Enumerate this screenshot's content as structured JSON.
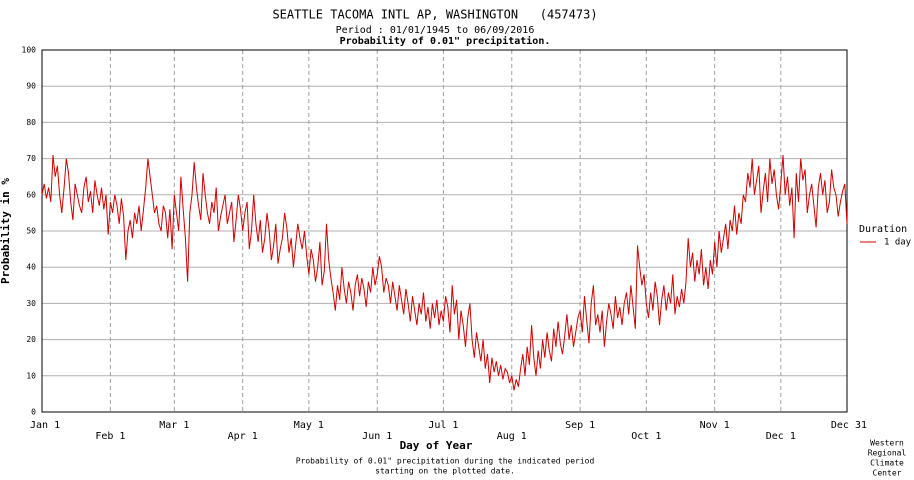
{
  "chart_data": {
    "type": "line",
    "title": "SEATTLE TACOMA INTL AP, WASHINGTON   (457473)",
    "subtitle": "Period : 01/01/1945 to 06/09/2016",
    "subtitle2": "Probability of 0.01\" precipitation.",
    "x_label": "Day of Year",
    "y_label": "Probability in %",
    "footnote": [
      "Probability of 0.01\" precipitation during the indicated period",
      "starting on the plotted date."
    ],
    "credit": [
      "Western",
      "Regional",
      "Climate",
      "Center"
    ],
    "legend_title": "Duration",
    "xlim": [
      0,
      365
    ],
    "xticks": [
      {
        "value": 0,
        "label": "Jan 1"
      },
      {
        "value": 31,
        "label": "Feb 1"
      },
      {
        "value": 60,
        "label": "Mar 1"
      },
      {
        "value": 91,
        "label": "Apr 1"
      },
      {
        "value": 121,
        "label": "May 1"
      },
      {
        "value": 152,
        "label": "Jun 1"
      },
      {
        "value": 182,
        "label": "Jul 1"
      },
      {
        "value": 213,
        "label": "Aug 1"
      },
      {
        "value": 244,
        "label": "Sep 1"
      },
      {
        "value": 274,
        "label": "Oct 1"
      },
      {
        "value": 305,
        "label": "Nov 1"
      },
      {
        "value": 335,
        "label": "Dec 1"
      },
      {
        "value": 365,
        "label": "Dec 31"
      }
    ],
    "ylim": [
      0,
      100
    ],
    "yticks": [
      0,
      10,
      20,
      30,
      40,
      50,
      60,
      70,
      80,
      90,
      100
    ],
    "grid": true,
    "series": [
      {
        "name": "1 day",
        "color": "#d00000",
        "values": [
          60,
          63,
          59,
          62,
          58,
          71,
          65,
          68,
          60,
          55,
          62,
          70,
          66,
          58,
          53,
          63,
          60,
          57,
          55,
          62,
          65,
          58,
          61,
          55,
          64,
          60,
          57,
          62,
          56,
          60,
          49,
          58,
          55,
          60,
          57,
          52,
          59,
          54,
          42,
          50,
          53,
          48,
          55,
          52,
          57,
          50,
          56,
          62,
          70,
          65,
          60,
          55,
          57,
          52,
          50,
          57,
          55,
          48,
          56,
          45,
          60,
          55,
          50,
          65,
          56,
          48,
          36,
          55,
          60,
          69,
          62,
          57,
          53,
          66,
          60,
          55,
          52,
          58,
          55,
          62,
          50,
          54,
          57,
          60,
          52,
          55,
          58,
          47,
          53,
          60,
          56,
          50,
          55,
          58,
          45,
          50,
          60,
          52,
          47,
          53,
          44,
          48,
          55,
          50,
          42,
          46,
          52,
          41,
          45,
          48,
          55,
          51,
          44,
          48,
          40,
          46,
          52,
          48,
          45,
          50,
          43,
          38,
          45,
          42,
          36,
          40,
          47,
          35,
          39,
          52,
          42,
          37,
          33,
          28,
          35,
          31,
          40,
          34,
          30,
          36,
          33,
          28,
          35,
          38,
          32,
          37,
          34,
          29,
          36,
          33,
          40,
          35,
          38,
          43,
          40,
          33,
          37,
          35,
          30,
          36,
          32,
          28,
          35,
          31,
          27,
          34,
          30,
          25,
          32,
          28,
          24,
          30,
          27,
          33,
          25,
          29,
          23,
          30,
          26,
          31,
          24,
          28,
          25,
          32,
          29,
          22,
          35,
          27,
          31,
          20,
          28,
          24,
          18,
          26,
          30,
          20,
          15,
          22,
          18,
          14,
          20,
          12,
          16,
          8,
          15,
          11,
          14,
          10,
          13,
          9,
          12,
          11,
          8,
          10,
          6,
          9,
          7,
          12,
          16,
          10,
          18,
          13,
          24,
          15,
          10,
          17,
          12,
          20,
          15,
          22,
          17,
          14,
          23,
          18,
          25,
          19,
          16,
          21,
          27,
          20,
          24,
          18,
          22,
          26,
          28,
          22,
          32,
          25,
          19,
          30,
          35,
          24,
          27,
          22,
          28,
          18,
          25,
          30,
          27,
          23,
          32,
          26,
          29,
          24,
          30,
          33,
          27,
          35,
          29,
          23,
          46,
          40,
          35,
          38,
          30,
          26,
          33,
          28,
          36,
          32,
          24,
          31,
          35,
          28,
          33,
          30,
          38,
          27,
          32,
          29,
          34,
          30,
          36,
          48,
          40,
          44,
          36,
          42,
          38,
          45,
          35,
          40,
          34,
          42,
          38,
          47,
          40,
          50,
          44,
          48,
          52,
          45,
          53,
          50,
          57,
          49,
          55,
          52,
          60,
          58,
          66,
          62,
          70,
          60,
          64,
          68,
          55,
          61,
          66,
          58,
          70,
          63,
          67,
          60,
          56,
          63,
          71,
          60,
          65,
          57,
          62,
          48,
          66,
          58,
          70,
          64,
          67,
          55,
          60,
          63,
          57,
          51,
          62,
          66,
          60,
          64,
          55,
          58,
          67,
          62,
          60,
          54,
          58,
          61,
          63,
          52
        ]
      }
    ]
  }
}
